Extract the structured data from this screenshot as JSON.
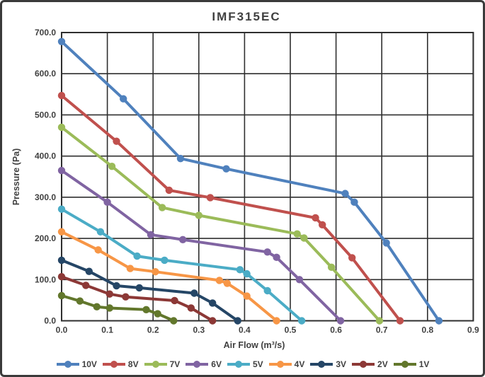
{
  "chart_data": {
    "type": "line",
    "title": "IMF315EC",
    "xlabel": "Air Flow (m³/s)",
    "ylabel": "Pressure (Pa)",
    "xlim": [
      0,
      0.9
    ],
    "ylim": [
      0,
      700
    ],
    "grid": true,
    "legend_position": "bottom",
    "xticks": {
      "values": [
        0,
        0.1,
        0.2,
        0.3,
        0.4,
        0.5,
        0.6,
        0.7,
        0.8,
        0.9
      ],
      "labels": [
        "0.0",
        "0.1",
        "0.2",
        "0.3",
        "0.4",
        "0.5",
        "0.6",
        "0.7",
        "0.8",
        "0.9"
      ]
    },
    "yticks": {
      "values": [
        0,
        100,
        200,
        300,
        400,
        500,
        600,
        700
      ],
      "labels": [
        "0.0",
        "100.0",
        "200.0",
        "300.0",
        "400.0",
        "500.0",
        "600.0",
        "700.0"
      ]
    },
    "series": [
      {
        "name": "10V",
        "color": "#4F81BD",
        "points": [
          [
            0,
            678
          ],
          [
            0.135,
            539
          ],
          [
            0.26,
            394
          ],
          [
            0.36,
            369
          ],
          [
            0.62,
            309
          ],
          [
            0.64,
            288
          ],
          [
            0.71,
            189
          ],
          [
            0.825,
            0
          ]
        ]
      },
      {
        "name": "8V",
        "color": "#C0504D",
        "points": [
          [
            0,
            547
          ],
          [
            0.12,
            436
          ],
          [
            0.235,
            317
          ],
          [
            0.325,
            299
          ],
          [
            0.555,
            250
          ],
          [
            0.57,
            233
          ],
          [
            0.635,
            153
          ],
          [
            0.74,
            0
          ]
        ]
      },
      {
        "name": "7V",
        "color": "#9BBB59",
        "points": [
          [
            0,
            470
          ],
          [
            0.11,
            375
          ],
          [
            0.22,
            275
          ],
          [
            0.3,
            256
          ],
          [
            0.515,
            211
          ],
          [
            0.53,
            201
          ],
          [
            0.59,
            130
          ],
          [
            0.695,
            0
          ]
        ]
      },
      {
        "name": "6V",
        "color": "#8064A2",
        "points": [
          [
            0,
            365
          ],
          [
            0.1,
            288
          ],
          [
            0.195,
            209
          ],
          [
            0.265,
            197
          ],
          [
            0.45,
            167
          ],
          [
            0.47,
            154
          ],
          [
            0.52,
            100
          ],
          [
            0.61,
            0
          ]
        ]
      },
      {
        "name": "5V",
        "color": "#4BACC6",
        "points": [
          [
            0,
            271
          ],
          [
            0.085,
            216
          ],
          [
            0.165,
            157
          ],
          [
            0.225,
            147
          ],
          [
            0.39,
            124
          ],
          [
            0.405,
            114
          ],
          [
            0.45,
            73
          ],
          [
            0.525,
            0
          ]
        ]
      },
      {
        "name": "4V",
        "color": "#F79646",
        "points": [
          [
            0,
            216
          ],
          [
            0.08,
            172
          ],
          [
            0.15,
            127
          ],
          [
            0.205,
            119
          ],
          [
            0.345,
            98
          ],
          [
            0.362,
            91
          ],
          [
            0.405,
            60
          ],
          [
            0.47,
            0
          ]
        ]
      },
      {
        "name": "3V",
        "color": "#254666",
        "points": [
          [
            0,
            147
          ],
          [
            0.06,
            120
          ],
          [
            0.12,
            85
          ],
          [
            0.17,
            80
          ],
          [
            0.29,
            67
          ],
          [
            0.33,
            43
          ],
          [
            0.385,
            0
          ]
        ]
      },
      {
        "name": "2V",
        "color": "#8C3836",
        "points": [
          [
            0,
            107
          ],
          [
            0.053,
            86
          ],
          [
            0.105,
            65
          ],
          [
            0.14,
            58
          ],
          [
            0.247,
            49
          ],
          [
            0.283,
            31
          ],
          [
            0.33,
            0
          ]
        ]
      },
      {
        "name": "1V",
        "color": "#62772C",
        "points": [
          [
            0,
            61
          ],
          [
            0.04,
            48
          ],
          [
            0.077,
            34
          ],
          [
            0.105,
            31
          ],
          [
            0.185,
            27
          ],
          [
            0.21,
            17
          ],
          [
            0.245,
            0
          ]
        ]
      }
    ]
  }
}
